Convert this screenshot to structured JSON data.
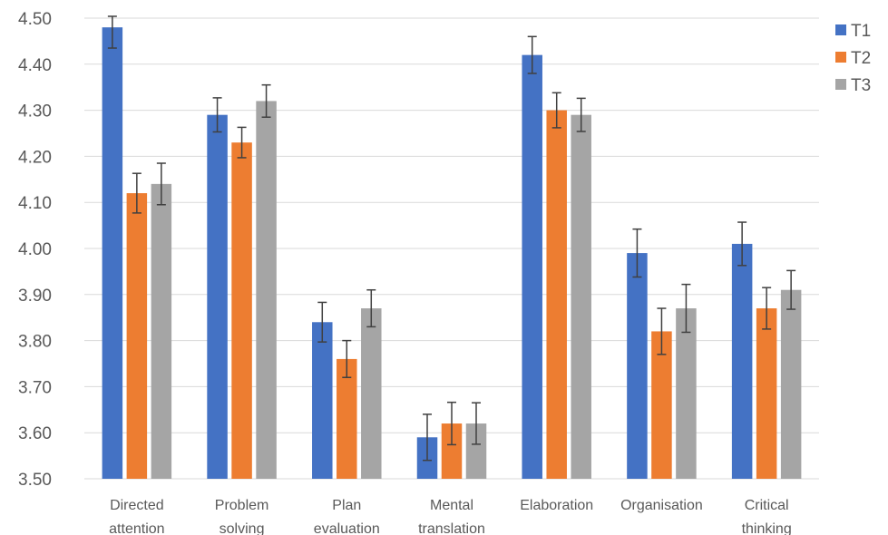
{
  "chart_data": {
    "type": "bar",
    "title": "",
    "xlabel": "",
    "ylabel": "",
    "ylim": [
      3.5,
      4.5
    ],
    "yticks": [
      "3.50",
      "3.60",
      "3.70",
      "3.80",
      "3.90",
      "4.00",
      "4.10",
      "4.20",
      "4.30",
      "4.40",
      "4.50"
    ],
    "grid": true,
    "legend_position": "top-right",
    "categories": [
      [
        "Directed",
        "attention"
      ],
      [
        "Problem",
        "solving"
      ],
      [
        "Plan",
        "evaluation"
      ],
      [
        "Mental",
        "translation"
      ],
      [
        "Elaboration"
      ],
      [
        "Organisation"
      ],
      [
        "Critical",
        "thinking"
      ]
    ],
    "series": [
      {
        "name": "T1",
        "color": "#4472C4",
        "values": [
          4.48,
          4.29,
          3.84,
          3.59,
          4.42,
          3.99,
          4.01
        ],
        "errors": [
          0.045,
          0.037,
          0.043,
          0.05,
          0.04,
          0.052,
          0.047
        ]
      },
      {
        "name": "T2",
        "color": "#ED7D31",
        "values": [
          4.12,
          4.23,
          3.76,
          3.62,
          4.3,
          3.82,
          3.87
        ],
        "errors": [
          0.043,
          0.033,
          0.04,
          0.046,
          0.038,
          0.05,
          0.045
        ]
      },
      {
        "name": "T3",
        "color": "#A5A5A5",
        "values": [
          4.14,
          4.32,
          3.87,
          3.62,
          4.29,
          3.87,
          3.91
        ],
        "errors": [
          0.045,
          0.035,
          0.04,
          0.045,
          0.036,
          0.052,
          0.042
        ]
      }
    ]
  }
}
